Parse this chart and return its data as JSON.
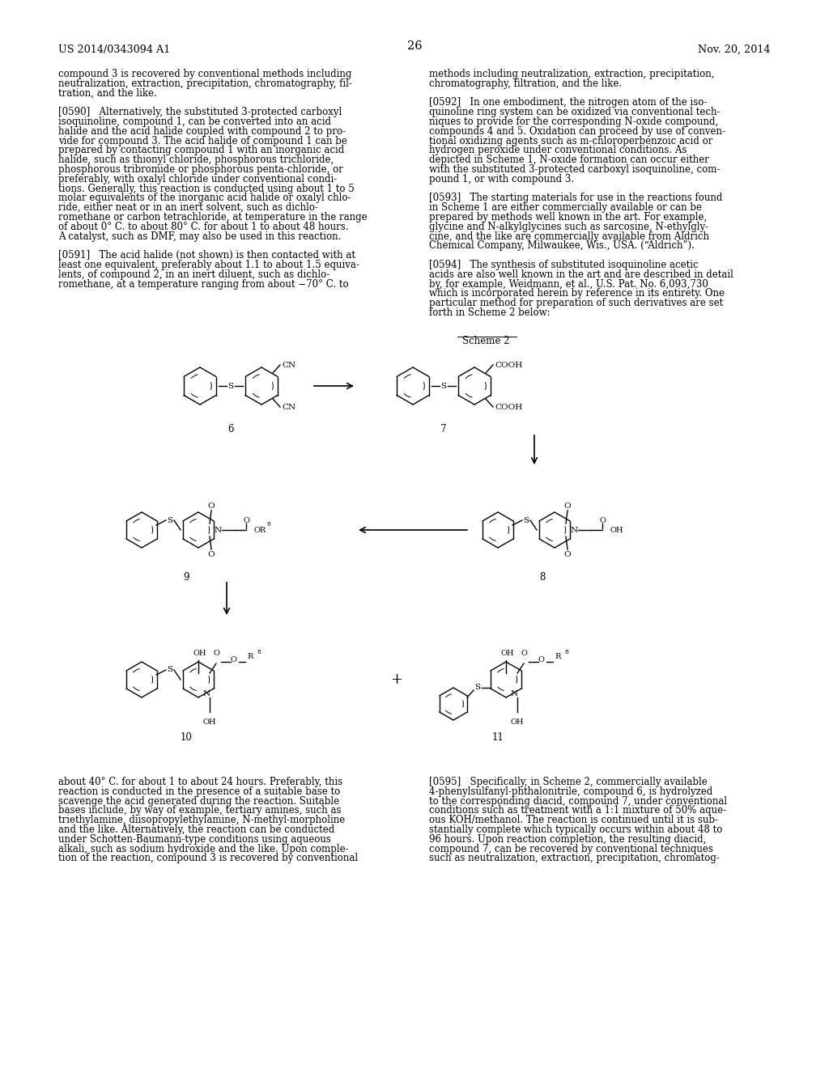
{
  "page_header_left": "US 2014/0343094 A1",
  "page_header_right": "Nov. 20, 2014",
  "page_number": "26",
  "background_color": "#ffffff",
  "text_color": "#000000",
  "font_size_body": 8.5,
  "left_column_text": [
    "compound 3 is recovered by conventional methods including",
    "neutralization, extraction, precipitation, chromatography, fil-",
    "tration, and the like.",
    "",
    "[0590]   Alternatively, the substituted 3-protected carboxyl",
    "isoquinoline, compound 1, can be converted into an acid",
    "halide and the acid halide coupled with compound 2 to pro-",
    "vide for compound 3. The acid halide of compound 1 can be",
    "prepared by contacting compound 1 with an inorganic acid",
    "halide, such as thionyl chloride, phosphorous trichloride,",
    "phosphorous tribromide or phosphorous penta-chloride, or",
    "preferably, with oxalyl chloride under conventional condi-",
    "tions. Generally, this reaction is conducted using about 1 to 5",
    "molar equivalents of the inorganic acid halide or oxalyl chlo-",
    "ride, either neat or in an inert solvent, such as dichlo-",
    "romethane or carbon tetrachloride, at temperature in the range",
    "of about 0° C. to about 80° C. for about 1 to about 48 hours.",
    "A catalyst, such as DMF, may also be used in this reaction.",
    "",
    "[0591]   The acid halide (not shown) is then contacted with at",
    "least one equivalent, preferably about 1.1 to about 1.5 equiva-",
    "lents, of compound 2, in an inert diluent, such as dichlo-",
    "romethane, at a temperature ranging from about −70° C. to"
  ],
  "right_column_text": [
    "methods including neutralization, extraction, precipitation,",
    "chromatography, filtration, and the like.",
    "",
    "[0592]   In one embodiment, the nitrogen atom of the iso-",
    "quinoline ring system can be oxidized via conventional tech-",
    "niques to provide for the corresponding N-oxide compound,",
    "compounds 4 and 5. Oxidation can proceed by use of conven-",
    "tional oxidizing agents such as m-chloroperbenzoic acid or",
    "hydrogen peroxide under conventional conditions. As",
    "depicted in Scheme 1, N-oxide formation can occur either",
    "with the substituted 3-protected carboxyl isoquinoline, com-",
    "pound 1, or with compound 3.",
    "",
    "[0593]   The starting materials for use in the reactions found",
    "in Scheme 1 are either commercially available or can be",
    "prepared by methods well known in the art. For example,",
    "glycine and N-alkylglycines such as sarcosine, N-ethylgly-",
    "cine, and the like are commercially available from Aldrich",
    "Chemical Company, Milwaukee, Wis., USA. (“Aldrich”).",
    "",
    "[0594]   The synthesis of substituted isoquinoline acetic",
    "acids are also well known in the art and are described in detail",
    "by, for example, Weidmann, et al., U.S. Pat. No. 6,093,730",
    "which is incorporated herein by reference in its entirety. One",
    "particular method for preparation of such derivatives are set",
    "forth in Scheme 2 below:"
  ],
  "bottom_left_text": [
    "about 40° C. for about 1 to about 24 hours. Preferably, this",
    "reaction is conducted in the presence of a suitable base to",
    "scavenge the acid generated during the reaction. Suitable",
    "bases include, by way of example, tertiary amines, such as",
    "triethylamine, diisopropylethylamine, N-methyl-morpholine",
    "and the like. Alternatively, the reaction can be conducted",
    "under Schotten-Baumann-type conditions using aqueous",
    "alkali, such as sodium hydroxide and the like. Upon comple-",
    "tion of the reaction, compound 3 is recovered by conventional"
  ],
  "bottom_right_text": [
    "[0595]   Specifically, in Scheme 2, commercially available",
    "4-phenylsulfanyl-phthalonitrile, compound 6, is hydrolyzed",
    "to the corresponding diacid, compound 7, under conventional",
    "conditions such as treatment with a 1:1 mixture of 50% aque-",
    "ous KOH/methanol. The reaction is continued until it is sub-",
    "stantially complete which typically occurs within about 48 to",
    "96 hours. Upon reaction completion, the resulting diacid,",
    "compound 7, can be recovered by conventional techniques",
    "such as neutralization, extraction, precipitation, chromatog-"
  ]
}
